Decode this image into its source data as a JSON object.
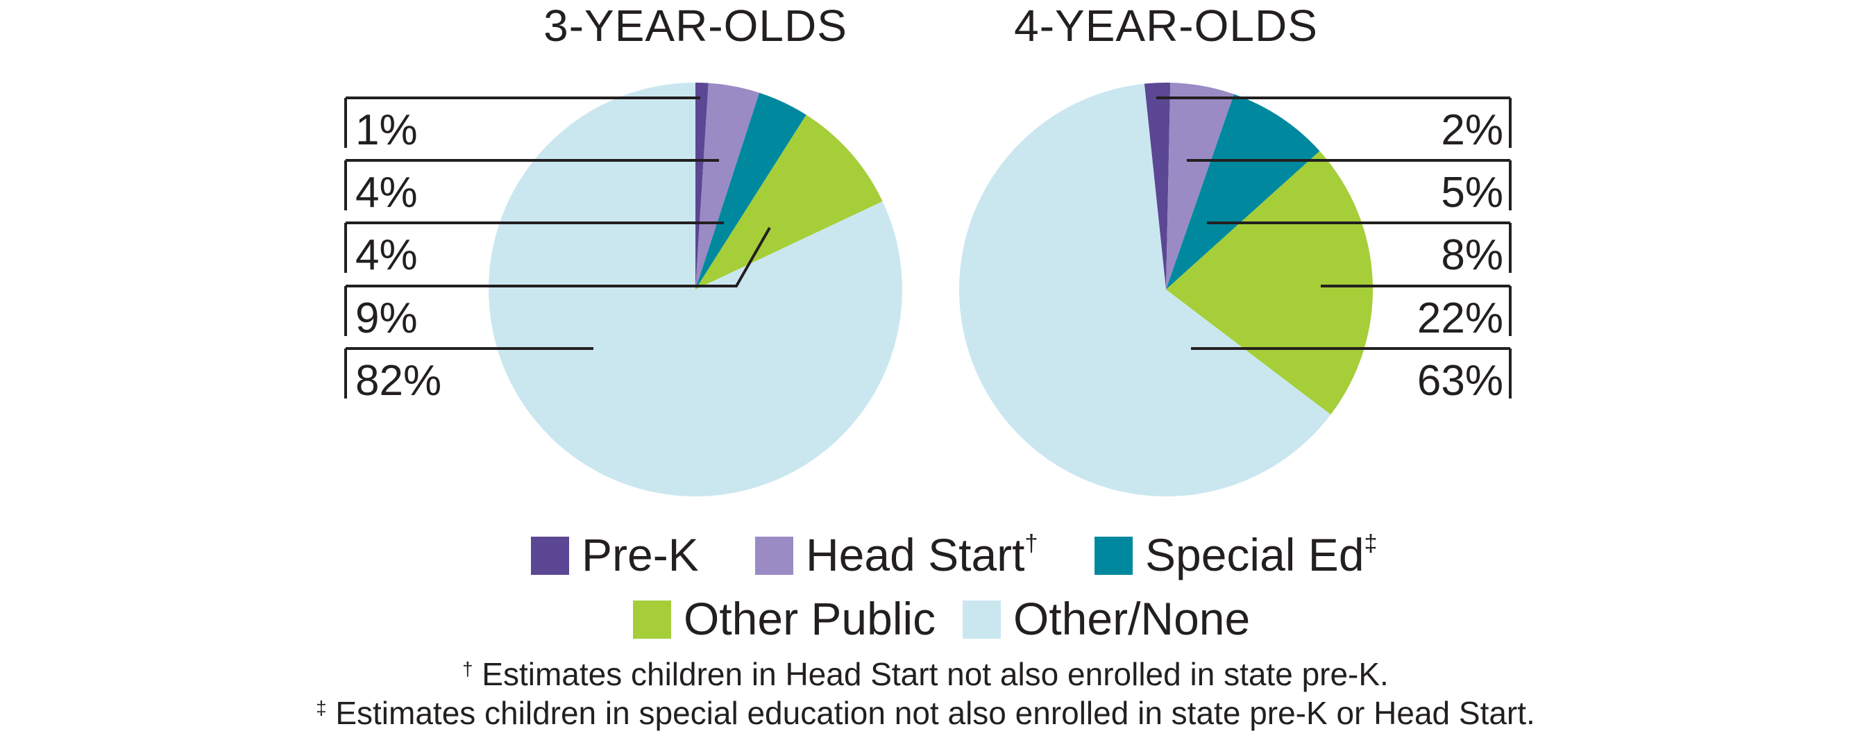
{
  "figure": {
    "background": "#FFFFFF",
    "ink_color": "#231F20"
  },
  "colors": {
    "pre_k": "#5B4793",
    "head_start": "#9A8BC5",
    "special_ed": "#00899E",
    "other_public": "#A5CE39",
    "other_none": "#CAE7F0",
    "ink": "#231F20"
  },
  "titles": {
    "left": "3-YEAR-OLDS",
    "right": "4-YEAR-OLDS"
  },
  "legend": {
    "rows": [
      [
        {
          "label": "Pre-K",
          "mark": "",
          "color_key": "pre_k"
        },
        {
          "label": "Head Start",
          "mark": "†",
          "color_key": "head_start"
        },
        {
          "label": "Special Ed",
          "mark": "‡",
          "color_key": "special_ed"
        }
      ],
      [
        {
          "label": "Other Public",
          "mark": "",
          "color_key": "other_public"
        },
        {
          "label": "Other/None",
          "mark": "",
          "color_key": "other_none"
        }
      ]
    ]
  },
  "footnotes": [
    {
      "mark": "†",
      "text": "Estimates children in Head Start not also enrolled in state pre-K."
    },
    {
      "mark": "‡",
      "text": "Estimates children in special education not also enrolled in state pre-K or Head Start."
    }
  ],
  "chart_data": [
    {
      "type": "pie",
      "title": "3-YEAR-OLDS",
      "categories": [
        "Pre-K",
        "Head Start",
        "Special Ed",
        "Other Public",
        "Other/None"
      ],
      "values": [
        1,
        4,
        4,
        9,
        82
      ],
      "unit": "%",
      "value_labels": [
        "1%",
        "4%",
        "4%",
        "9%",
        "82%"
      ],
      "color_keys": [
        "pre_k",
        "head_start",
        "special_ed",
        "other_public",
        "other_none"
      ],
      "start_angle_deg": 0,
      "direction": "clockwise",
      "label_side": "left",
      "legend_position": "bottom-center"
    },
    {
      "type": "pie",
      "title": "4-YEAR-OLDS",
      "categories": [
        "Pre-K",
        "Head Start",
        "Special Ed",
        "Other Public",
        "Other/None"
      ],
      "values": [
        2,
        5,
        8,
        22,
        63
      ],
      "unit": "%",
      "value_labels": [
        "2%",
        "5%",
        "8%",
        "22%",
        "63%"
      ],
      "color_keys": [
        "pre_k",
        "head_start",
        "special_ed",
        "other_public",
        "other_none"
      ],
      "start_angle_deg": -6,
      "direction": "clockwise",
      "label_side": "right",
      "legend_position": "bottom-center"
    }
  ]
}
